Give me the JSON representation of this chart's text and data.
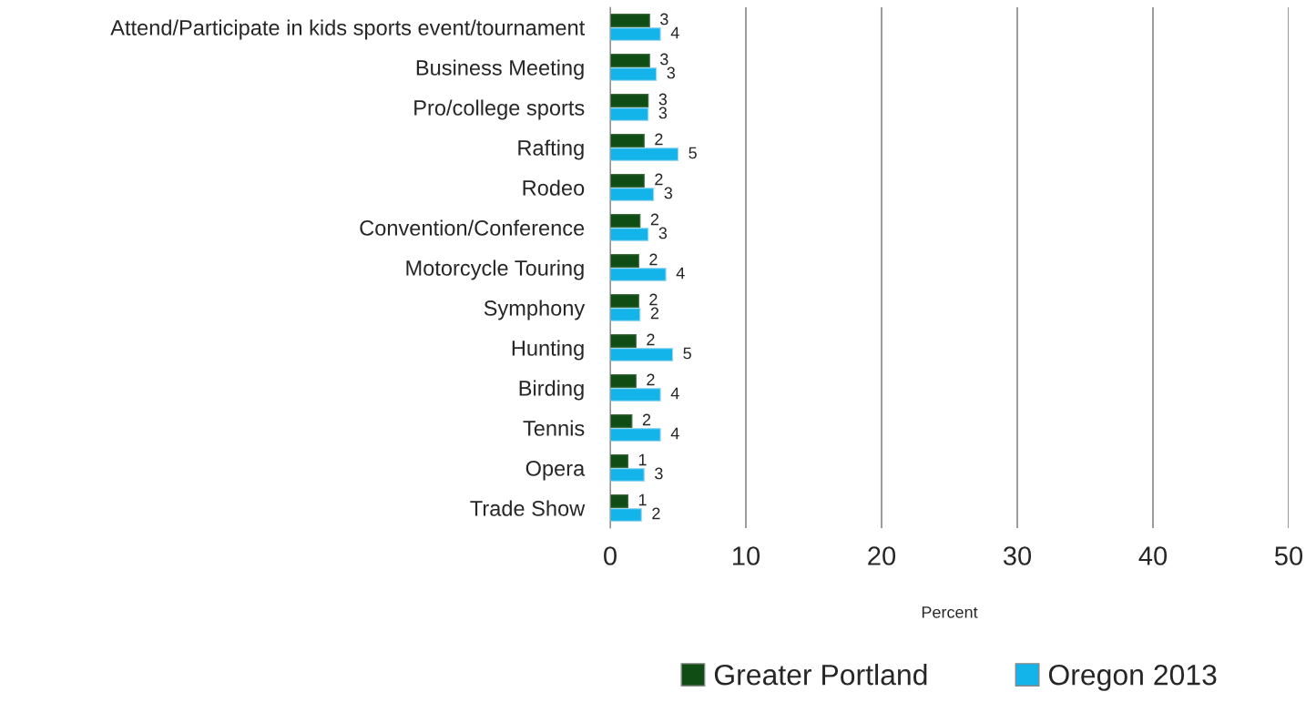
{
  "chart_data": {
    "type": "bar",
    "orientation": "horizontal",
    "xlabel": "Percent",
    "categories": [
      "Attend/Participate in kids sports event/tournament",
      "Business Meeting",
      "Pro/college sports",
      "Rafting",
      "Rodeo",
      "Convention/Conference",
      "Motorcycle Touring",
      "Symphony",
      "Hunting",
      "Birding",
      "Tennis",
      "Opera",
      "Trade Show"
    ],
    "series": [
      {
        "name": "Greater Portland",
        "color": "#0f4d14",
        "values": [
          2.9,
          2.9,
          2.8,
          2.5,
          2.5,
          2.2,
          2.1,
          2.1,
          1.9,
          1.9,
          1.6,
          1.3,
          1.3
        ],
        "value_labels": [
          "3",
          "3",
          "3",
          "2",
          "2",
          "2",
          "2",
          "2",
          "2",
          "2",
          "2",
          "1",
          "1"
        ]
      },
      {
        "name": "Oregon 2013",
        "color": "#12b4ea",
        "values": [
          3.7,
          3.4,
          2.8,
          5.0,
          3.2,
          2.8,
          4.1,
          2.2,
          4.6,
          3.7,
          3.7,
          2.5,
          2.3
        ],
        "value_labels": [
          "4",
          "3",
          "3",
          "5",
          "3",
          "3",
          "4",
          "2",
          "5",
          "4",
          "4",
          "3",
          "2"
        ]
      }
    ],
    "xlim": [
      0,
      50
    ],
    "xticks": [
      0,
      10,
      20,
      30,
      40,
      50
    ],
    "grid": "x",
    "legend": "bottom"
  }
}
